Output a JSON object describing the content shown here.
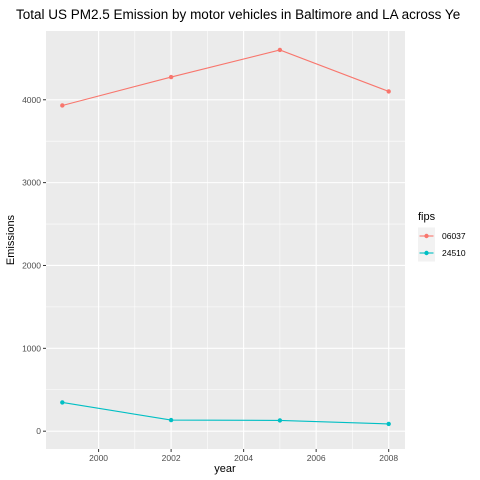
{
  "chart_data": {
    "type": "line",
    "title": "Total US PM2.5 Emission by motor vehicles in Baltimore and LA across Ye",
    "xlabel": "year",
    "ylabel": "Emissions",
    "x": [
      1999,
      2002,
      2005,
      2008
    ],
    "xlim": [
      1998.55,
      2008.45
    ],
    "ylim": [
      -215,
      4830
    ],
    "x_ticks": [
      2000,
      2002,
      2004,
      2006,
      2008
    ],
    "x_tick_labels": [
      "2000",
      "2002",
      "2004",
      "2006",
      "2008"
    ],
    "y_ticks": [
      0,
      1000,
      2000,
      3000,
      4000
    ],
    "y_tick_labels": [
      "0",
      "1000",
      "2000",
      "3000",
      "4000"
    ],
    "grid": true,
    "legend": {
      "title": "fips",
      "position": "right"
    },
    "series": [
      {
        "name": "06037",
        "color": "#F8766D",
        "values": [
          3931,
          4274,
          4601,
          4101
        ]
      },
      {
        "name": "24510",
        "color": "#00BFC4",
        "values": [
          347,
          134,
          130,
          88
        ]
      }
    ]
  }
}
